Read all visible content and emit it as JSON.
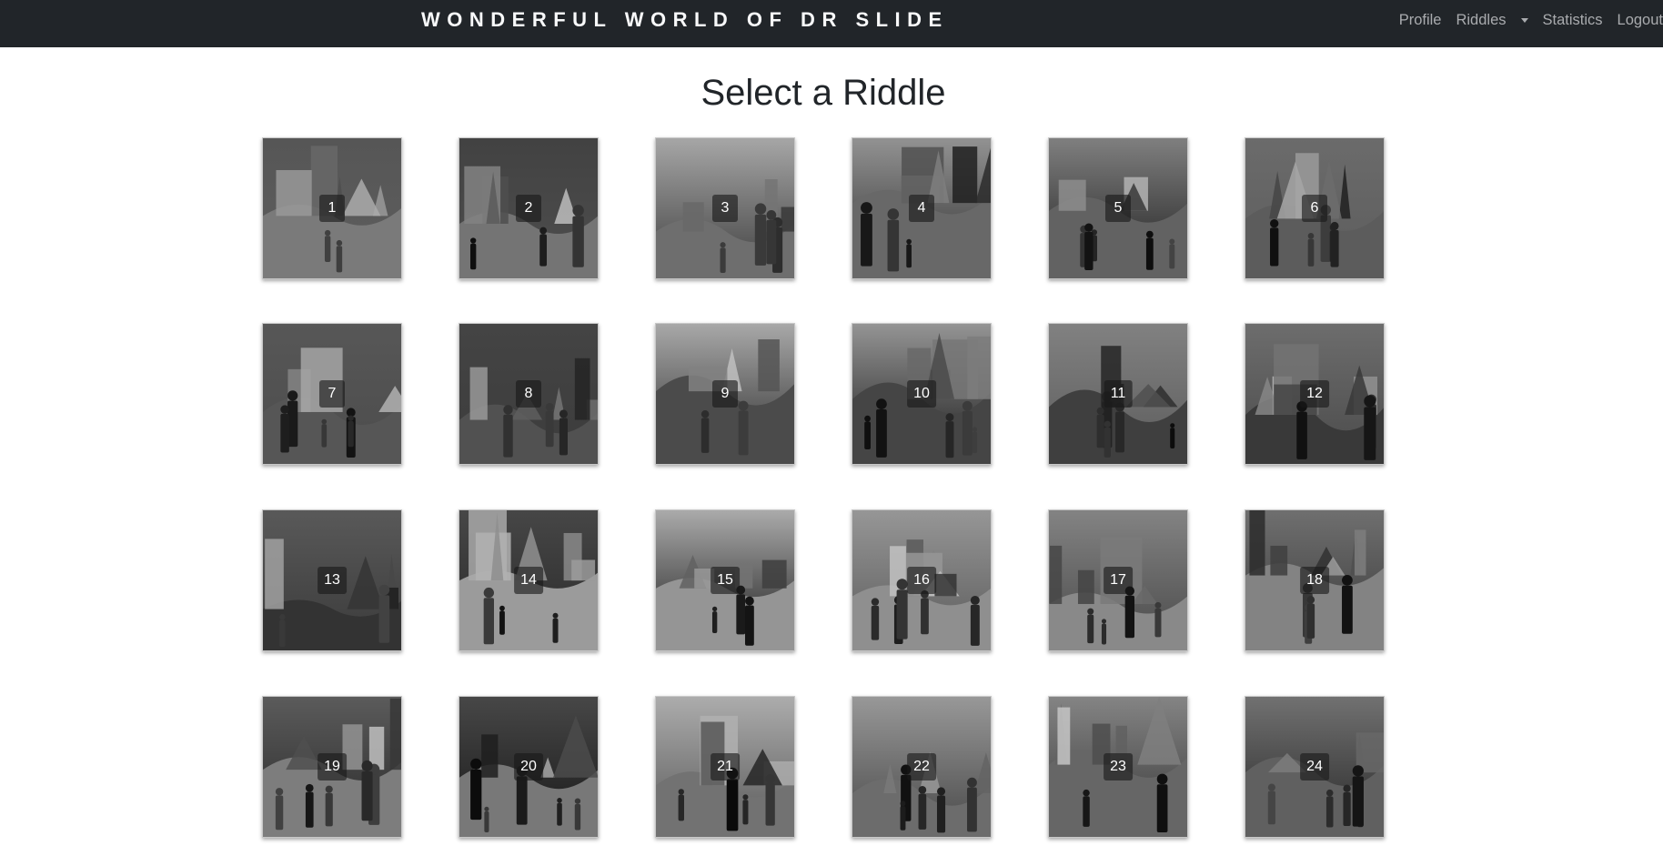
{
  "navbar": {
    "brand": "WONDERFUL WORLD OF DR SLIDE",
    "links": {
      "profile": "Profile",
      "riddles": "Riddles",
      "statistics": "Statistics",
      "logout": "Logout"
    }
  },
  "page": {
    "title": "Select a Riddle"
  },
  "riddles": [
    {
      "number": "1"
    },
    {
      "number": "2"
    },
    {
      "number": "3"
    },
    {
      "number": "4"
    },
    {
      "number": "5"
    },
    {
      "number": "6"
    },
    {
      "number": "7"
    },
    {
      "number": "8"
    },
    {
      "number": "9"
    },
    {
      "number": "10"
    },
    {
      "number": "11"
    },
    {
      "number": "12"
    },
    {
      "number": "13"
    },
    {
      "number": "14"
    },
    {
      "number": "15"
    },
    {
      "number": "16"
    },
    {
      "number": "17"
    },
    {
      "number": "18"
    },
    {
      "number": "19"
    },
    {
      "number": "20"
    },
    {
      "number": "21"
    },
    {
      "number": "22"
    },
    {
      "number": "23"
    },
    {
      "number": "24"
    }
  ],
  "colors": {
    "navbar_bg": "#212529",
    "brand": "#f8f9fa",
    "nav_link": "#a9abae",
    "title": "#212529"
  }
}
